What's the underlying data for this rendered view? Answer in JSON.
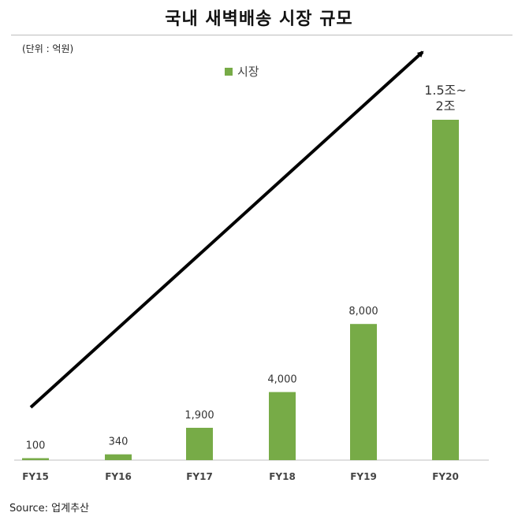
{
  "title": "국내 새벽배송 시장 규모",
  "unit_note": "(단위 : 억원)",
  "source": "Source: 업계추산",
  "colors": {
    "bar": "#77ab47",
    "axis": "#bfbfbf",
    "arrow": "#000000"
  },
  "chart_data": {
    "type": "bar",
    "categories": [
      "FY15",
      "FY16",
      "FY17",
      "FY18",
      "FY19",
      "FY20"
    ],
    "series": [
      {
        "name": "시장",
        "values": [
          100,
          340,
          1900,
          4000,
          8000,
          20000
        ]
      }
    ],
    "data_labels": [
      "100",
      "340",
      "1,900",
      "4,000",
      "8,000",
      "1.5조~\n2조"
    ],
    "ylim": [
      0,
      20000
    ],
    "legend_position": "top-center",
    "annotation": "upward trend arrow",
    "grid": false
  }
}
